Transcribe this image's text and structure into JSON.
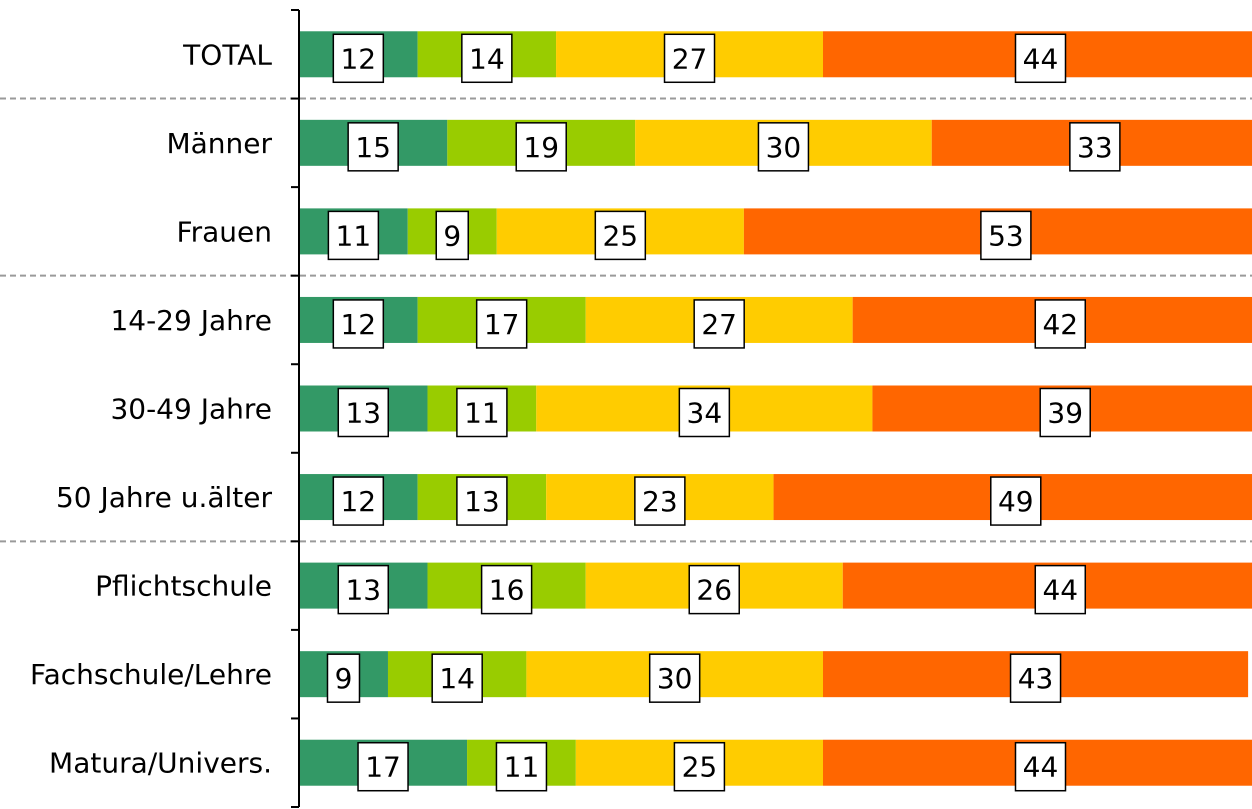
{
  "chart_data": {
    "type": "bar",
    "orientation": "horizontal",
    "stacked": true,
    "categories": [
      "TOTAL",
      "Männer",
      "Frauen",
      "14-29 Jahre",
      "30-49 Jahre",
      "50 Jahre u.älter",
      "Pflichtschule",
      "Fachschule/Lehre",
      "Matura/Univers."
    ],
    "series": [
      {
        "color": "#339966",
        "values": [
          12,
          15,
          11,
          12,
          13,
          12,
          13,
          9,
          17
        ]
      },
      {
        "color": "#99CC00",
        "values": [
          14,
          19,
          9,
          17,
          11,
          13,
          16,
          14,
          11
        ]
      },
      {
        "color": "#FFCC00",
        "values": [
          27,
          30,
          25,
          27,
          34,
          23,
          26,
          30,
          25
        ]
      },
      {
        "color": "#FF6600",
        "values": [
          44,
          33,
          53,
          42,
          39,
          49,
          44,
          43,
          44
        ]
      }
    ],
    "xlim": [
      0,
      97
    ],
    "group_separators_after": [
      0,
      2,
      5
    ],
    "grid": false,
    "legend": "none"
  }
}
